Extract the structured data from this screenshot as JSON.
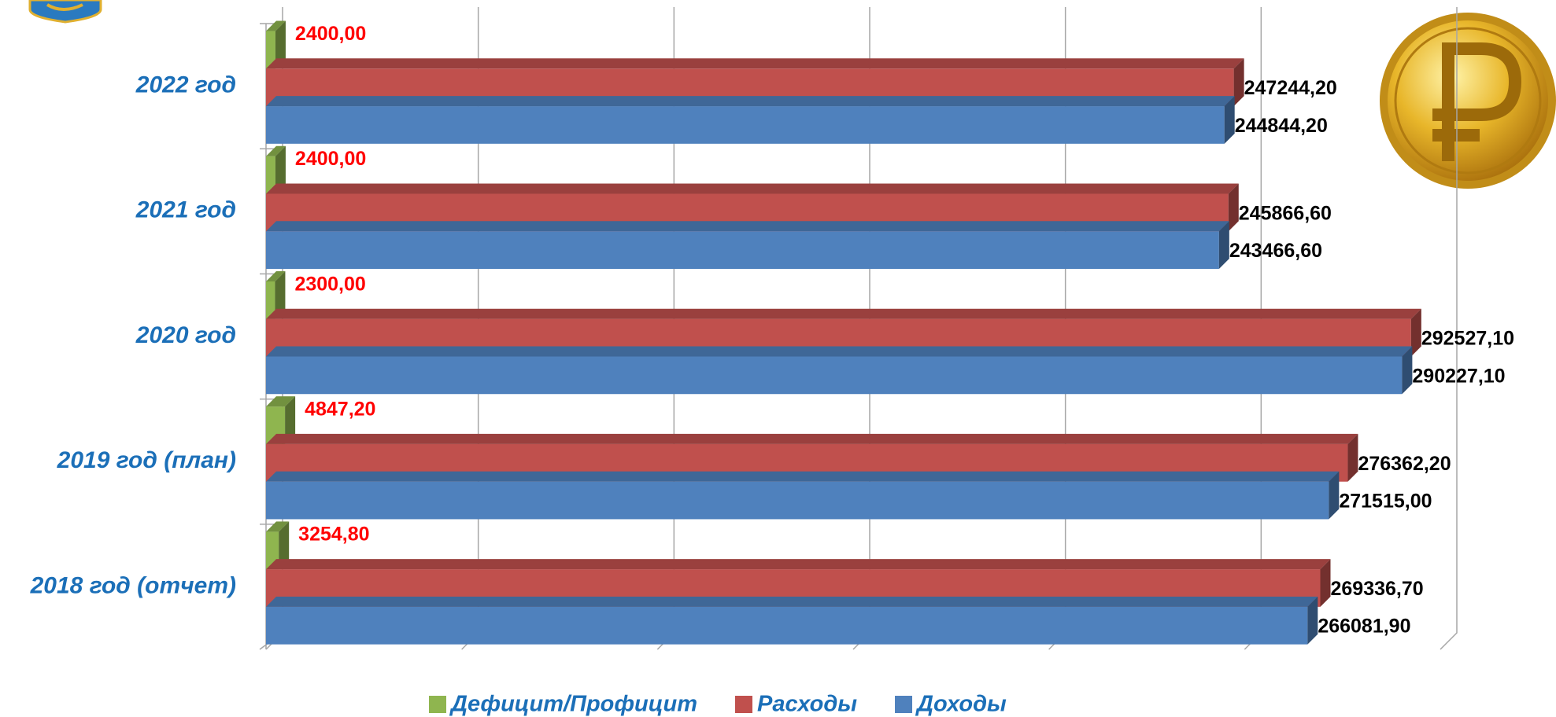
{
  "chart_data": {
    "type": "bar3d",
    "orientation": "horizontal",
    "categories": [
      "2018 год (отчет)",
      "2019 год  (план)",
      "2020 год",
      "2021 год",
      "2022 год"
    ],
    "series": [
      {
        "name": "Дефицит/Профицит",
        "color": "#8fb54f",
        "label_color": "#ff0000",
        "values": [
          3254.8,
          4847.2,
          2300,
          2400,
          2400
        ],
        "value_labels": [
          "3254,80",
          "4847,20",
          "2300,00",
          "2400,00",
          "2400,00"
        ]
      },
      {
        "name": "Расходы",
        "color": "#c0504d",
        "label_color": "#000000",
        "values": [
          269336.7,
          276362.2,
          292527.1,
          245866.6,
          247244.2
        ],
        "value_labels": [
          "269336,70",
          "276362,20",
          "292527,10",
          "245866,60",
          "247244,20"
        ]
      },
      {
        "name": "Доходы",
        "color": "#4f81bd",
        "label_color": "#000000",
        "values": [
          266081.9,
          271515,
          290227.1,
          243466.6,
          244844.2
        ],
        "value_labels": [
          "266081,90",
          "271515,00",
          "290227,10",
          "243466,60",
          "244844,20"
        ]
      }
    ],
    "xlim": [
      0,
      300000
    ],
    "xticks": [
      0,
      50000,
      100000,
      150000,
      200000,
      250000,
      300000
    ],
    "grid": true
  }
}
